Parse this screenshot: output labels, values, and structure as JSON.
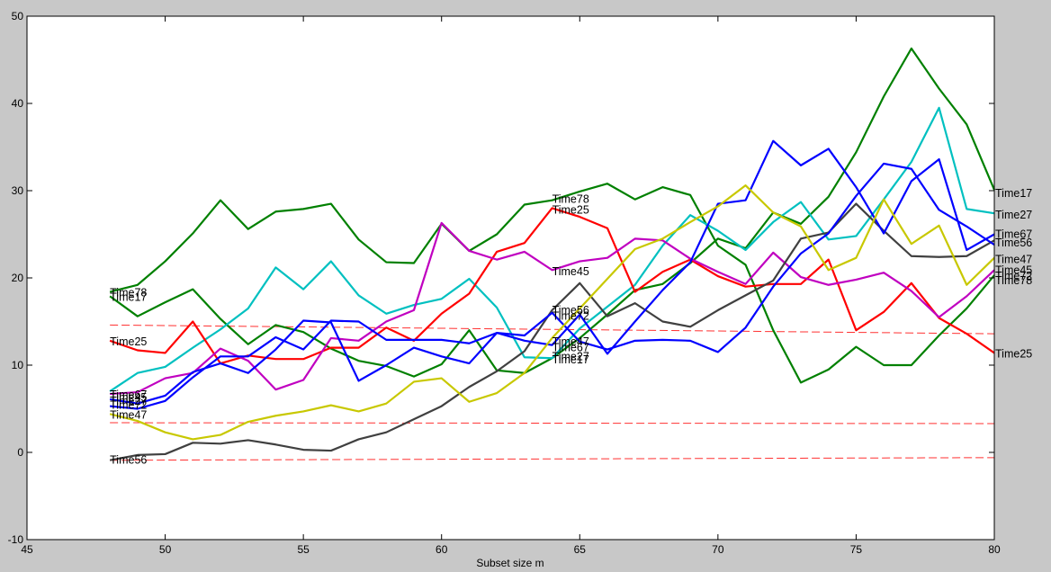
{
  "chart_data": {
    "type": "line",
    "title": "",
    "xlabel": "Subset size m",
    "ylabel": "",
    "xlim": [
      45,
      80
    ],
    "ylim": [
      -10,
      50
    ],
    "xticks": [
      "45",
      "50",
      "55",
      "60",
      "65",
      "70",
      "75",
      "80"
    ],
    "yticks": [
      "-10",
      "0",
      "10",
      "20",
      "30",
      "40",
      "50"
    ],
    "grid": false,
    "legend": "none",
    "x": [
      48,
      49,
      50,
      51,
      52,
      53,
      54,
      55,
      56,
      57,
      58,
      59,
      60,
      61,
      62,
      63,
      64,
      65,
      66,
      67,
      68,
      69,
      70,
      71,
      72,
      73,
      74,
      75,
      76,
      77,
      78,
      79,
      80
    ],
    "series": [
      {
        "color": "#008000",
        "values": [
          18.4,
          19.2,
          21.9,
          25.1,
          28.9,
          25.6,
          27.6,
          27.9,
          28.5,
          24.4,
          21.8,
          21.7,
          26.2,
          23.1,
          25.0,
          28.4,
          28.9,
          29.9,
          30.8,
          29.0,
          30.4,
          29.5,
          23.7,
          21.5,
          14.0,
          8.0,
          9.5,
          12.1,
          10.0,
          10.0,
          13.4,
          16.5,
          20.3
        ]
      },
      {
        "color": "#008000",
        "values": [
          17.9,
          15.6,
          17.2,
          18.7,
          15.3,
          12.4,
          14.6,
          13.8,
          11.9,
          10.5,
          9.9,
          8.7,
          10.1,
          14.0,
          9.4,
          9.1,
          10.8,
          13.1,
          15.8,
          18.6,
          19.3,
          21.7,
          24.5,
          23.4,
          27.5,
          26.2,
          29.3,
          34.4,
          40.8,
          46.3,
          41.7,
          37.6,
          30.1
        ]
      },
      {
        "color": "#00c0c0",
        "values": [
          7.0,
          9.1,
          9.8,
          12.0,
          14.1,
          16.5,
          21.2,
          18.7,
          21.9,
          18.0,
          15.9,
          16.9,
          17.6,
          19.9,
          16.6,
          10.9,
          10.8,
          14.2,
          16.7,
          19.2,
          23.7,
          27.2,
          25.4,
          23.2,
          26.4,
          28.7,
          24.4,
          24.8,
          29.0,
          33.3,
          39.5,
          27.9,
          27.4
        ]
      },
      {
        "color": "#ff0000",
        "values": [
          12.8,
          11.7,
          11.4,
          15.0,
          10.2,
          11.1,
          10.7,
          10.7,
          12.0,
          12.0,
          14.3,
          12.8,
          15.9,
          18.2,
          23.0,
          24.0,
          28.0,
          27.0,
          25.7,
          18.4,
          20.7,
          22.1,
          20.2,
          19.0,
          19.3,
          19.3,
          22.1,
          14.0,
          16.1,
          19.4,
          15.4,
          13.6,
          11.4
        ]
      },
      {
        "color": "#c000c0",
        "values": [
          6.7,
          6.9,
          8.5,
          9.1,
          11.9,
          10.5,
          7.2,
          8.3,
          13.1,
          12.8,
          15.0,
          16.3,
          26.3,
          23.1,
          22.1,
          23.0,
          20.9,
          21.9,
          22.3,
          24.5,
          24.3,
          22.2,
          20.7,
          19.3,
          22.9,
          20.1,
          19.2,
          19.8,
          20.6,
          18.5,
          15.5,
          17.9,
          20.9
        ]
      },
      {
        "color": "#404040",
        "values": [
          -0.9,
          -0.3,
          -0.2,
          1.1,
          1.0,
          1.4,
          0.9,
          0.3,
          0.2,
          1.5,
          2.3,
          3.8,
          5.3,
          7.5,
          9.3,
          11.6,
          16.3,
          19.4,
          15.6,
          17.1,
          15.0,
          14.4,
          16.3,
          18.0,
          19.7,
          24.5,
          25.2,
          28.5,
          25.4,
          22.5,
          22.4,
          22.5,
          24.3
        ]
      },
      {
        "color": "#0000ff",
        "values": [
          5.3,
          5.0,
          5.9,
          8.6,
          11.0,
          11.0,
          13.2,
          11.8,
          15.1,
          15.0,
          12.9,
          12.9,
          12.9,
          12.5,
          13.7,
          12.8,
          12.3,
          15.8,
          11.3,
          15.0,
          18.6,
          21.8,
          28.5,
          28.9,
          35.7,
          32.9,
          34.8,
          30.4,
          25.1,
          31.1,
          33.6,
          23.2,
          25.0
        ]
      },
      {
        "color": "#0000ff",
        "values": [
          6.1,
          5.6,
          6.5,
          9.2,
          10.2,
          9.1,
          11.8,
          15.1,
          14.9,
          8.2,
          10.0,
          12.0,
          11.0,
          10.2,
          13.7,
          13.4,
          16.0,
          12.7,
          11.8,
          12.8,
          12.9,
          12.8,
          11.5,
          14.3,
          19.0,
          22.8,
          25.1,
          29.4,
          33.1,
          32.5,
          27.8,
          25.9,
          23.8
        ]
      },
      {
        "color": "#c8c800",
        "values": [
          4.4,
          3.6,
          2.3,
          1.5,
          2.0,
          3.5,
          4.2,
          4.7,
          5.4,
          4.7,
          5.6,
          8.1,
          8.5,
          5.8,
          6.8,
          9.1,
          13.1,
          16.5,
          19.9,
          23.3,
          24.5,
          26.4,
          28.2,
          30.6,
          27.5,
          25.9,
          20.9,
          22.3,
          29.0,
          23.9,
          26.0,
          19.2,
          22.3
        ]
      }
    ],
    "left_labels": [
      {
        "text": "Time78",
        "y": 18.3
      },
      {
        "text": "Time17",
        "y": 17.8
      },
      {
        "text": "Time25",
        "y": 12.7
      },
      {
        "text": "Time67",
        "y": 6.6
      },
      {
        "text": "Time45",
        "y": 6.3
      },
      {
        "text": "Time27",
        "y": 5.9
      },
      {
        "text": "Time72",
        "y": 5.4
      },
      {
        "text": "Time47",
        "y": 4.3
      },
      {
        "text": "Time56",
        "y": -0.9
      }
    ],
    "mid_labels": [
      {
        "text": "Time78",
        "y": 29.0
      },
      {
        "text": "Time25",
        "y": 27.8
      },
      {
        "text": "Time45",
        "y": 20.7
      },
      {
        "text": "Time56",
        "y": 16.3
      },
      {
        "text": "Time72",
        "y": 15.6
      },
      {
        "text": "Time47",
        "y": 12.7
      },
      {
        "text": "Time67",
        "y": 12.0
      },
      {
        "text": "Time27",
        "y": 11.0
      },
      {
        "text": "Time17",
        "y": 10.6
      }
    ],
    "right_labels": [
      {
        "text": "Time17",
        "y": 29.7
      },
      {
        "text": "Time27",
        "y": 27.2
      },
      {
        "text": "Time67",
        "y": 25.0
      },
      {
        "text": "Time56",
        "y": 24.0
      },
      {
        "text": "Time47",
        "y": 22.1
      },
      {
        "text": "Time45",
        "y": 20.9
      },
      {
        "text": "Time72",
        "y": 20.2
      },
      {
        "text": "Time78",
        "y": 19.7
      },
      {
        "text": "Time25",
        "y": 11.3
      }
    ],
    "reference_lines": [
      {
        "color": "#ff3030",
        "from": [
          48,
          14.6
        ],
        "to": [
          80,
          13.6
        ]
      },
      {
        "color": "#ff3030",
        "from": [
          48,
          3.4
        ],
        "to": [
          80,
          3.3
        ]
      },
      {
        "color": "#ff3030",
        "from": [
          48,
          -0.9
        ],
        "to": [
          80,
          -0.6
        ]
      }
    ]
  }
}
